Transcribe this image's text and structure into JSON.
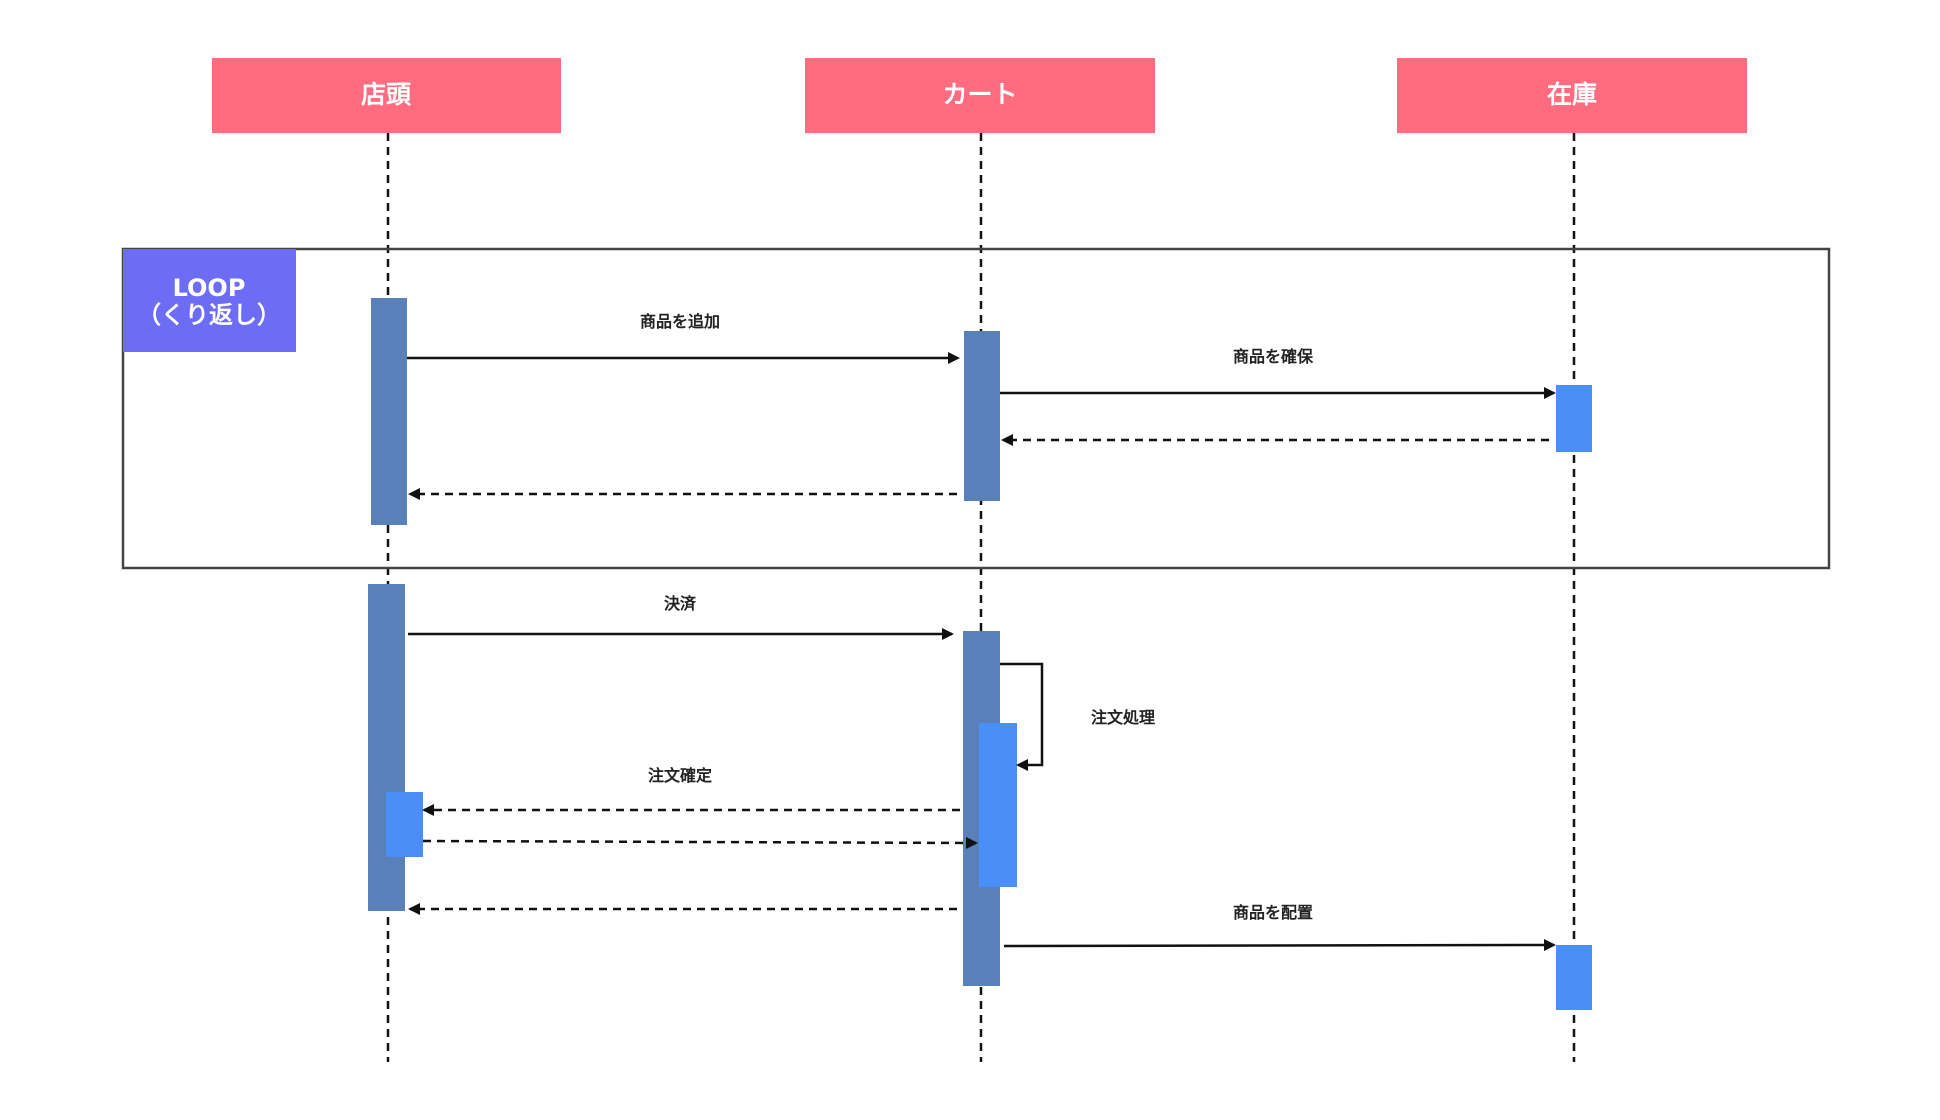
{
  "colors": {
    "participant_fill": "#FF6B7F",
    "activation_dark": "#5980B8",
    "activation_light": "#4A8EF7",
    "loop_label_fill": "#6C6CF5",
    "line": "#111111",
    "frame": "#444444"
  },
  "participants": {
    "storefront": "店頭",
    "cart": "カート",
    "inventory": "在庫"
  },
  "loop": {
    "label_line1": "LOOP",
    "label_line2": "（くり返し）"
  },
  "messages": {
    "add_item": "商品を追加",
    "reserve_item": "商品を確保",
    "checkout": "決済",
    "order_processing": "注文処理",
    "order_confirmed": "注文確定",
    "place_item": "商品を配置"
  }
}
